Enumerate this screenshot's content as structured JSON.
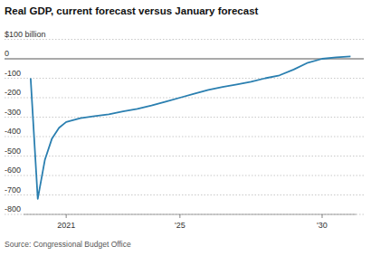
{
  "chart_data": {
    "type": "line",
    "title": "Real GDP, current forecast versus January forecast",
    "source": "Source: Congressional Budget Office",
    "x": [
      2019.75,
      2020,
      2020.25,
      2020.5,
      2020.75,
      2021,
      2021.5,
      2022,
      2022.5,
      2023,
      2023.5,
      2024,
      2024.5,
      2025,
      2025.5,
      2026,
      2026.5,
      2027,
      2027.5,
      2028,
      2028.5,
      2029,
      2029.5,
      2030,
      2030.5,
      2031
    ],
    "values": [
      -100,
      -720,
      -520,
      -410,
      -355,
      -325,
      -305,
      -295,
      -285,
      -270,
      -258,
      -240,
      -220,
      -200,
      -180,
      -160,
      -145,
      -132,
      -118,
      -100,
      -85,
      -55,
      -20,
      0,
      8,
      12
    ],
    "color": "#2a7fb0",
    "xlim": [
      2019.5,
      2031.2
    ],
    "xticks": [
      {
        "value": 2021,
        "label": "2021"
      },
      {
        "value": 2025,
        "label": "'25"
      },
      {
        "value": 2030,
        "label": "'30"
      }
    ],
    "ylim": [
      -800,
      100
    ],
    "yticks": [
      {
        "value": 100,
        "label": "$100 billion"
      },
      0,
      -100,
      -200,
      -300,
      -400,
      -500,
      -600,
      -700,
      -800
    ],
    "grid": true
  }
}
